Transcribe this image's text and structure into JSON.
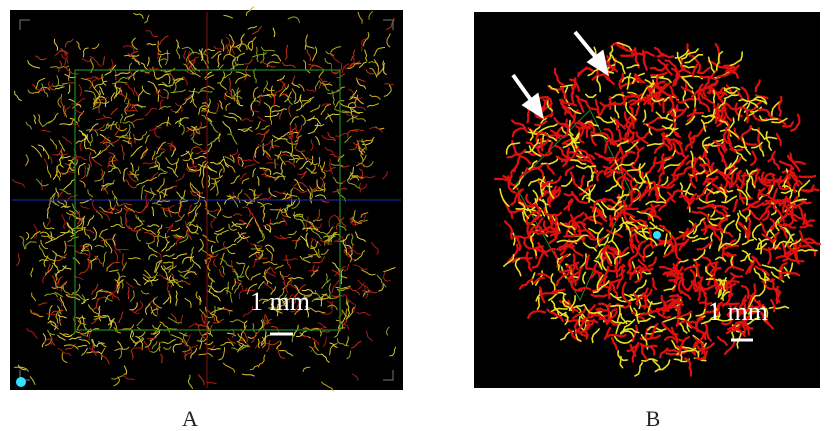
{
  "panels": [
    {
      "label": "A",
      "scale_bar": "1 mm"
    },
    {
      "label": "B",
      "scale_bar": "1 mm"
    }
  ]
}
